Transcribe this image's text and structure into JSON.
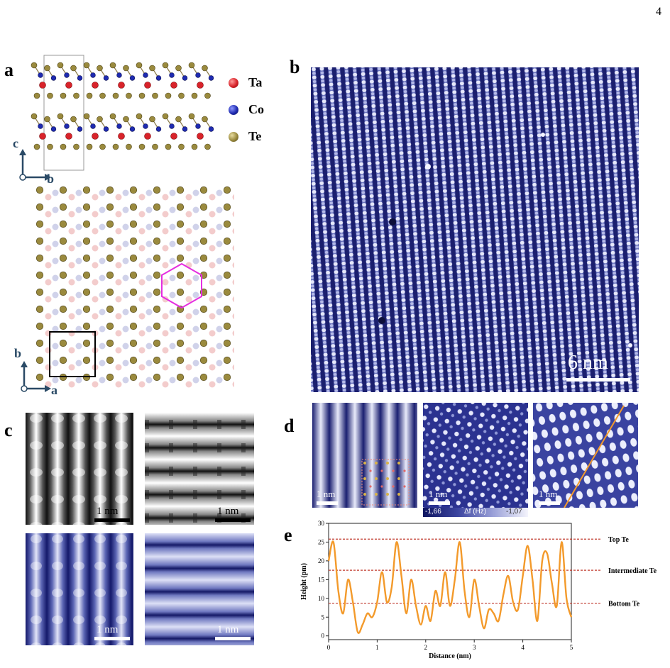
{
  "page_number": "4",
  "panels": {
    "a": {
      "letter": "a",
      "legend": [
        {
          "label": "Ta",
          "color": "#d8232a"
        },
        {
          "label": "Co",
          "color": "#1f2bb0"
        },
        {
          "label": "Te",
          "color": "#9a8a3e"
        }
      ],
      "axes_side": {
        "up": "c",
        "right": "b"
      },
      "axes_top": {
        "up": "b",
        "right": "a"
      }
    },
    "b": {
      "letter": "b",
      "scale": "6 nm"
    },
    "c": {
      "letter": "c",
      "scales": [
        "1 nm",
        "1 nm",
        "1 nm",
        "1 nm"
      ]
    },
    "d": {
      "letter": "d",
      "scales": [
        "1 nm",
        "1 nm",
        "1 nm"
      ],
      "colorbar": {
        "min": "-1,66",
        "label": "Δf (Hz)",
        "max": "-1,07"
      }
    },
    "e": {
      "letter": "e"
    }
  },
  "chart_data": {
    "type": "line",
    "xlabel": "Distance (nm)",
    "ylabel": "Height (pm)",
    "xlim": [
      0,
      5
    ],
    "ylim": [
      -1,
      30
    ],
    "xticks": [
      "0",
      "1",
      "2",
      "3",
      "4",
      "5"
    ],
    "yticks": [
      "0",
      "5",
      "10",
      "15",
      "20",
      "25",
      "30"
    ],
    "series": [
      {
        "color": "#f39a2b",
        "x": [
          0,
          0.1,
          0.2,
          0.3,
          0.4,
          0.5,
          0.6,
          0.7,
          0.8,
          0.9,
          1.0,
          1.1,
          1.2,
          1.3,
          1.4,
          1.5,
          1.6,
          1.7,
          1.8,
          1.9,
          2.0,
          2.1,
          2.2,
          2.3,
          2.4,
          2.5,
          2.6,
          2.7,
          2.8,
          2.9,
          3.0,
          3.1,
          3.2,
          3.3,
          3.4,
          3.5,
          3.6,
          3.7,
          3.8,
          3.9,
          4.0,
          4.1,
          4.2,
          4.3,
          4.4,
          4.5,
          4.6,
          4.7,
          4.8,
          4.9,
          5.0
        ],
        "y": [
          20,
          25,
          12,
          6,
          15,
          9,
          1,
          3,
          6,
          5,
          9,
          17,
          9,
          13,
          25,
          16,
          6,
          15,
          8,
          3,
          8,
          4,
          12,
          8,
          17,
          8,
          15,
          25,
          12,
          5,
          15,
          8,
          2,
          7,
          6,
          4,
          11,
          16,
          9,
          7,
          16,
          24,
          15,
          4,
          20,
          22,
          14,
          8,
          25,
          10,
          5
        ]
      }
    ],
    "reference_lines": [
      {
        "label": "Top Te",
        "y": 25.8,
        "color": "#c0392b"
      },
      {
        "label": "Intermediate Te",
        "y": 17.5,
        "color": "#c0392b"
      },
      {
        "label": "Bottom Te",
        "y": 8.7,
        "color": "#c0392b"
      }
    ]
  }
}
